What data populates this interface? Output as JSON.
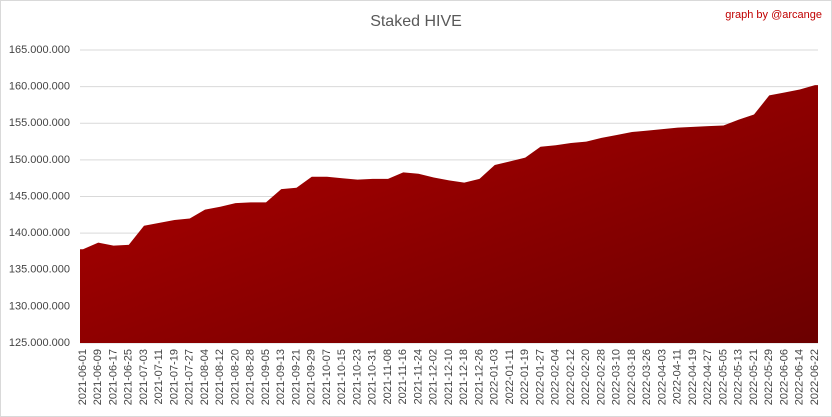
{
  "chart_data": {
    "type": "area",
    "title": "Staked HIVE",
    "annotation": "graph by @arcange",
    "categories": [
      "2021-06-01",
      "2021-06-09",
      "2021-06-17",
      "2021-06-25",
      "2021-07-03",
      "2021-07-11",
      "2021-07-19",
      "2021-07-27",
      "2021-08-04",
      "2021-08-12",
      "2021-08-20",
      "2021-08-28",
      "2021-09-05",
      "2021-09-13",
      "2021-09-21",
      "2021-09-29",
      "2021-10-07",
      "2021-10-15",
      "2021-10-23",
      "2021-10-31",
      "2021-11-08",
      "2021-11-16",
      "2021-11-24",
      "2021-12-02",
      "2021-12-10",
      "2021-12-18",
      "2021-12-26",
      "2022-01-03",
      "2022-01-11",
      "2022-01-19",
      "2022-01-27",
      "2022-02-04",
      "2022-02-12",
      "2022-02-20",
      "2022-02-28",
      "2022-03-10",
      "2022-03-18",
      "2022-03-26",
      "2022-04-03",
      "2022-04-11",
      "2022-04-19",
      "2022-04-27",
      "2022-05-05",
      "2022-05-13",
      "2022-05-21",
      "2022-05-29",
      "2022-06-06",
      "2022-06-14",
      "2022-06-22"
    ],
    "values": [
      137800000,
      138700000,
      138300000,
      138400000,
      141000000,
      141400000,
      141800000,
      142000000,
      143200000,
      143600000,
      144100000,
      144200000,
      144200000,
      146000000,
      146200000,
      147700000,
      147700000,
      147500000,
      147300000,
      147400000,
      147400000,
      148300000,
      148100000,
      147600000,
      147200000,
      146900000,
      147400000,
      149300000,
      149800000,
      150300000,
      151800000,
      152000000,
      152300000,
      152500000,
      153000000,
      153400000,
      153800000,
      154000000,
      154200000,
      154400000,
      154500000,
      154600000,
      154700000,
      155500000,
      156200000,
      158800000,
      159200000,
      159600000,
      160200000
    ],
    "color": [
      "#b30000",
      "#6b0000"
    ],
    "ylim": [
      125000000,
      165000000
    ],
    "yticks": [
      {
        "value": 125000000,
        "label": "125.000.000"
      },
      {
        "value": 130000000,
        "label": "130.000.000"
      },
      {
        "value": 135000000,
        "label": "135.000.000"
      },
      {
        "value": 140000000,
        "label": "140.000.000"
      },
      {
        "value": 145000000,
        "label": "145.000.000"
      },
      {
        "value": 150000000,
        "label": "150.000.000"
      },
      {
        "value": 155000000,
        "label": "155.000.000"
      },
      {
        "value": 160000000,
        "label": "160.000.000"
      },
      {
        "value": 165000000,
        "label": "165.000.000"
      }
    ],
    "grid": true
  }
}
